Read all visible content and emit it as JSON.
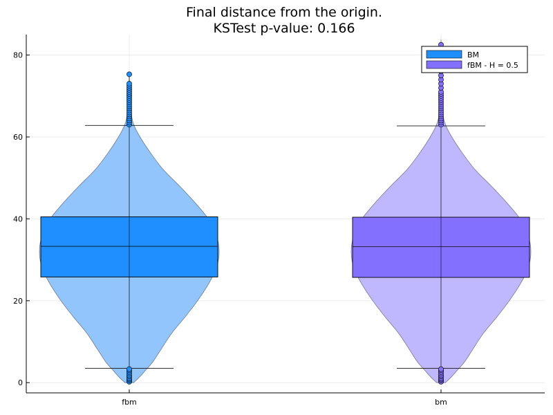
{
  "chart_data": {
    "type": "violin-box",
    "title": "Final distance from the origin.",
    "subtitle": "KSTest p-value: 0.166",
    "xlabel": "",
    "ylabel": "",
    "categories": [
      "fbm",
      "bm"
    ],
    "ylim": [
      -2.5,
      85
    ],
    "yticks": [
      0,
      20,
      40,
      60,
      80
    ],
    "grid": true,
    "legend": {
      "placement": "top-right",
      "entries": [
        {
          "label": "BM",
          "color": "#1f8fff"
        },
        {
          "label": "fBM - H = 0.5",
          "color": "#8470ff"
        }
      ]
    },
    "series": [
      {
        "category": "fbm",
        "color": "#1f8fff",
        "violin_color": "#93c5fd",
        "box": {
          "q1": 25.8,
          "median": 33.3,
          "q3": 40.5,
          "whisker_low": 3.5,
          "whisker_high": 62.8
        },
        "density": [
          [
            0.0,
            0.05
          ],
          [
            1.5,
            0.12
          ],
          [
            3,
            0.18
          ],
          [
            5,
            0.26
          ],
          [
            8,
            0.35
          ],
          [
            12,
            0.47
          ],
          [
            16,
            0.62
          ],
          [
            20,
            0.76
          ],
          [
            24,
            0.88
          ],
          [
            28,
            0.97
          ],
          [
            32,
            1.0
          ],
          [
            36,
            0.97
          ],
          [
            40,
            0.88
          ],
          [
            44,
            0.73
          ],
          [
            48,
            0.56
          ],
          [
            52,
            0.38
          ],
          [
            56,
            0.24
          ],
          [
            60,
            0.12
          ],
          [
            63,
            0.05
          ],
          [
            66,
            0.02
          ],
          [
            70,
            0.008
          ],
          [
            75.3,
            0.002
          ]
        ],
        "outliers_high": [
          63,
          63.5,
          64,
          64.5,
          65,
          65.5,
          66,
          66.5,
          67,
          67.5,
          68,
          68.5,
          69,
          69.5,
          70,
          70.5,
          71,
          71.5,
          72,
          72.5,
          73,
          75.3
        ],
        "outliers_low": [
          0.2,
          0.5,
          0.8,
          1.1,
          1.5,
          1.8,
          2.2,
          2.6,
          3.0,
          3.3
        ]
      },
      {
        "category": "bm",
        "color": "#8470ff",
        "violin_color": "#c0b8ff",
        "box": {
          "q1": 25.7,
          "median": 33.2,
          "q3": 40.4,
          "whisker_low": 3.5,
          "whisker_high": 62.7
        },
        "density": [
          [
            0.0,
            0.05
          ],
          [
            1.5,
            0.12
          ],
          [
            3,
            0.18
          ],
          [
            5,
            0.26
          ],
          [
            8,
            0.35
          ],
          [
            12,
            0.47
          ],
          [
            16,
            0.62
          ],
          [
            20,
            0.76
          ],
          [
            24,
            0.88
          ],
          [
            28,
            0.97
          ],
          [
            32,
            1.0
          ],
          [
            36,
            0.97
          ],
          [
            40,
            0.88
          ],
          [
            44,
            0.73
          ],
          [
            48,
            0.56
          ],
          [
            52,
            0.38
          ],
          [
            56,
            0.24
          ],
          [
            60,
            0.12
          ],
          [
            63,
            0.05
          ],
          [
            66,
            0.02
          ],
          [
            72,
            0.008
          ],
          [
            82.5,
            0.002
          ]
        ],
        "outliers_high": [
          63,
          63.5,
          64,
          64.5,
          65,
          65.5,
          66,
          66.5,
          67,
          67.5,
          68,
          68.5,
          69,
          69.5,
          70,
          70.5,
          71,
          72,
          73,
          74,
          75,
          76,
          77,
          78,
          79,
          80,
          82.5
        ],
        "outliers_low": [
          0.2,
          0.5,
          0.8,
          1.1,
          1.5,
          1.8,
          2.2,
          2.6,
          3.0,
          3.3
        ]
      }
    ]
  }
}
